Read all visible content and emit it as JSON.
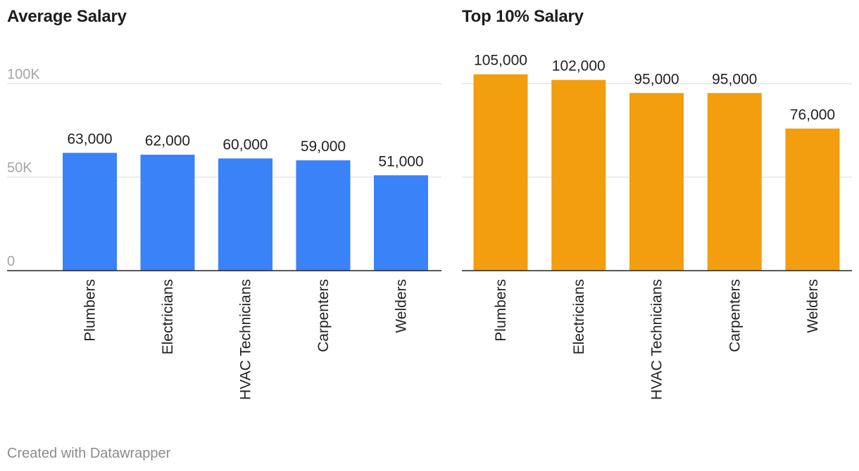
{
  "footer": {
    "credit": "Created with Datawrapper"
  },
  "colors": {
    "average": "#3a82f7",
    "top10": "#f29e0f",
    "grid": "#e1e1e1",
    "axis": "#222222",
    "tick_text": "#a6a6a6"
  },
  "chart_data": [
    {
      "type": "bar",
      "title": "Average Salary",
      "categories": [
        "Plumbers",
        "Electricians",
        "HVAC Technicians",
        "Carpenters",
        "Welders"
      ],
      "values": [
        63000,
        62000,
        60000,
        59000,
        51000
      ],
      "value_labels": [
        "63,000",
        "62,000",
        "60,000",
        "59,000",
        "51,000"
      ],
      "ylim": [
        0,
        100000
      ],
      "yticks": [
        0,
        50000,
        100000
      ],
      "ytick_labels": [
        "0",
        "50K",
        "100K"
      ],
      "grid": true,
      "xlabel": "",
      "ylabel": ""
    },
    {
      "type": "bar",
      "title": "Top 10% Salary",
      "categories": [
        "Plumbers",
        "Electricians",
        "HVAC Technicians",
        "Carpenters",
        "Welders"
      ],
      "values": [
        105000,
        102000,
        95000,
        95000,
        76000
      ],
      "value_labels": [
        "105,000",
        "102,000",
        "95,000",
        "95,000",
        "76,000"
      ],
      "ylim": [
        0,
        100000
      ],
      "yticks": [
        0,
        50000,
        100000
      ],
      "ytick_labels": [
        "",
        "",
        ""
      ],
      "grid": true,
      "xlabel": "",
      "ylabel": ""
    }
  ]
}
